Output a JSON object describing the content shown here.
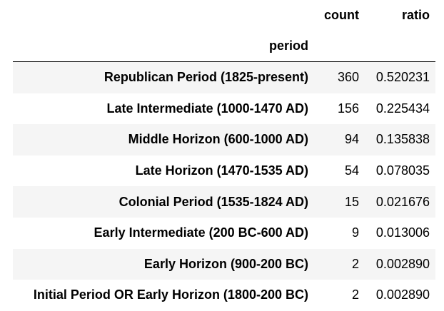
{
  "table": {
    "columns": [
      "count",
      "ratio"
    ],
    "index_name": "period",
    "rows": [
      {
        "period": "Republican Period (1825-present)",
        "count": "360",
        "ratio": "0.520231"
      },
      {
        "period": "Late Intermediate (1000-1470 AD)",
        "count": "156",
        "ratio": "0.225434"
      },
      {
        "period": "Middle Horizon (600-1000 AD)",
        "count": "94",
        "ratio": "0.135838"
      },
      {
        "period": "Late Horizon (1470-1535 AD)",
        "count": "54",
        "ratio": "0.078035"
      },
      {
        "period": "Colonial Period (1535-1824 AD)",
        "count": "15",
        "ratio": "0.021676"
      },
      {
        "period": "Early Intermediate (200 BC-600 AD)",
        "count": "9",
        "ratio": "0.013006"
      },
      {
        "period": "Early Horizon (900-200 BC)",
        "count": "2",
        "ratio": "0.002890"
      },
      {
        "period": "Initial Period OR Early Horizon (1800-200 BC)",
        "count": "2",
        "ratio": "0.002890"
      }
    ]
  }
}
